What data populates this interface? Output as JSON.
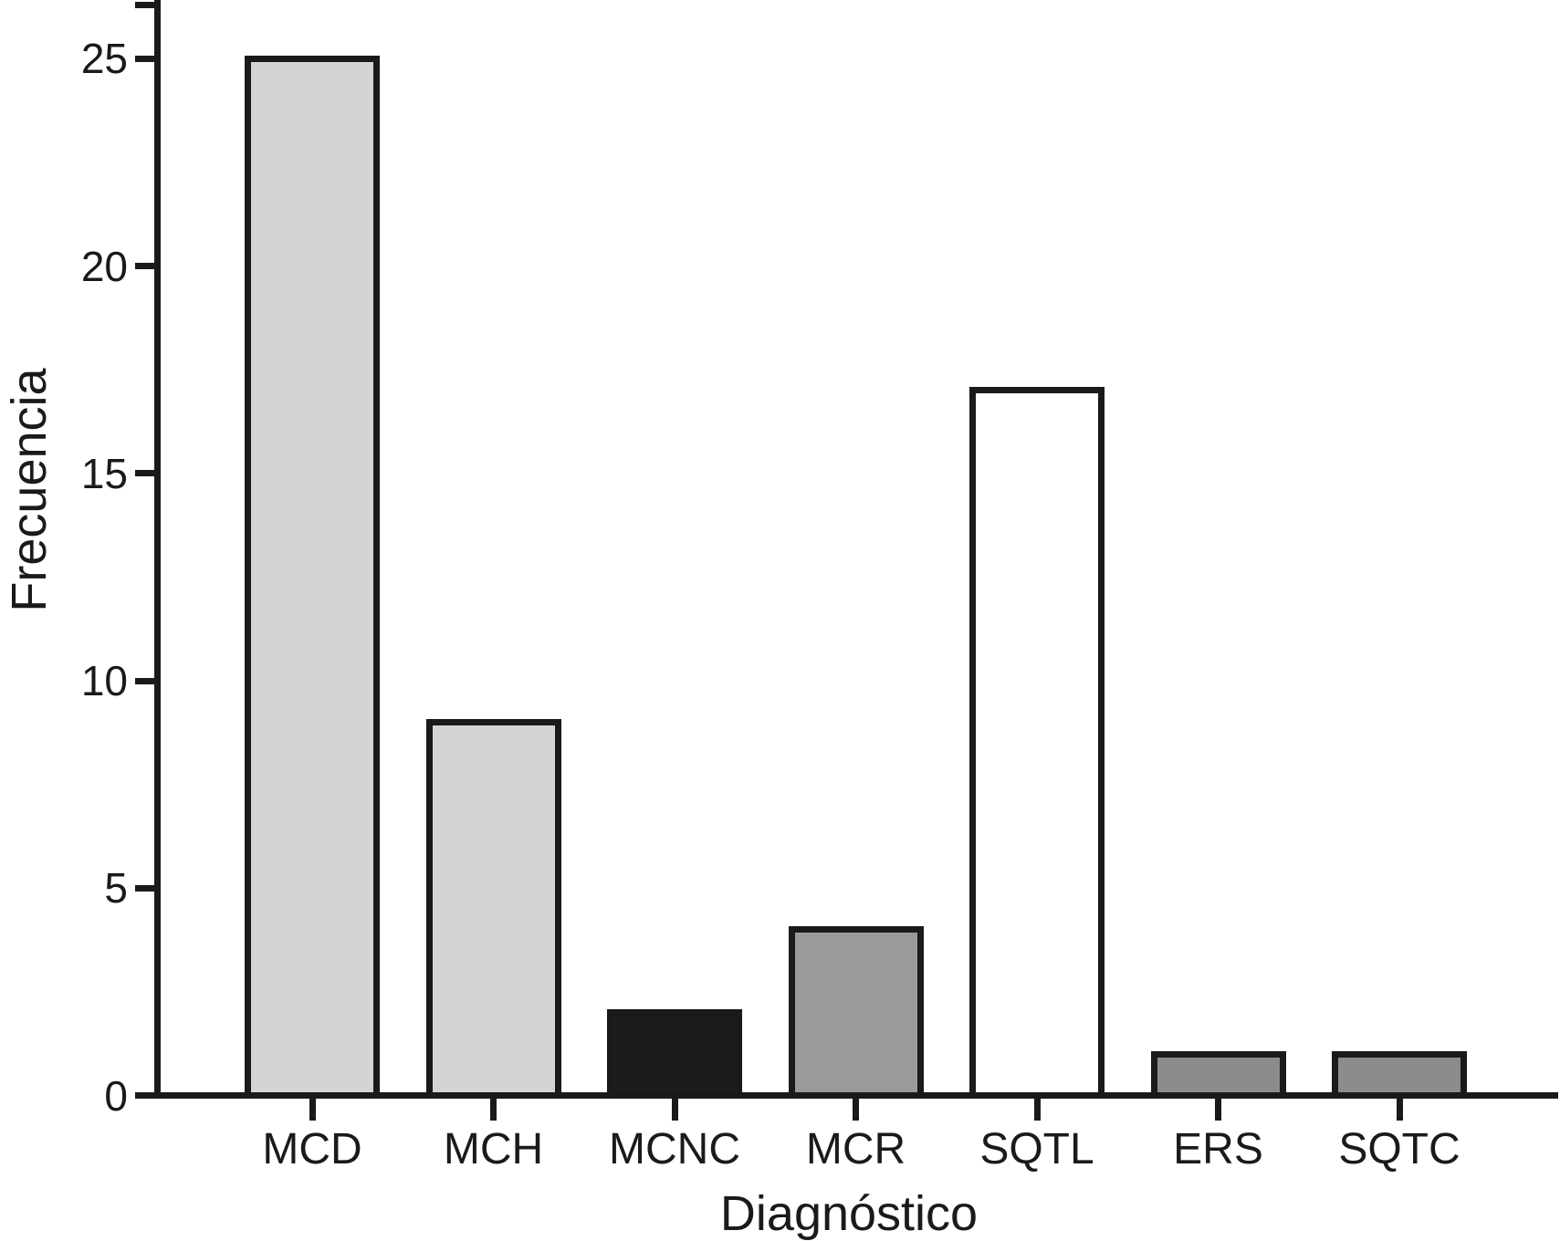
{
  "chart_data": {
    "type": "bar",
    "title": "",
    "xlabel": "Diagnóstico",
    "ylabel": "Frecuencia",
    "categories": [
      "MCD",
      "MCH",
      "MCNC",
      "MCR",
      "SQTL",
      "ERS",
      "SQTC"
    ],
    "values": [
      25,
      9,
      2,
      4,
      17,
      1,
      1
    ],
    "bar_colors": [
      "#d4d4d4",
      "#d4d4d4",
      "#1c1c1c",
      "#9a9a9a",
      "#ffffff",
      "#8c8c8c",
      "#8c8c8c"
    ],
    "bar_outline_color": "#1a1a1a",
    "axis_color": "#1a1a1a",
    "background_color": "#ffffff",
    "yticks": [
      0,
      5,
      10,
      15,
      20,
      25
    ],
    "ylim": [
      0,
      26.4
    ],
    "grid": false,
    "legend": null
  }
}
